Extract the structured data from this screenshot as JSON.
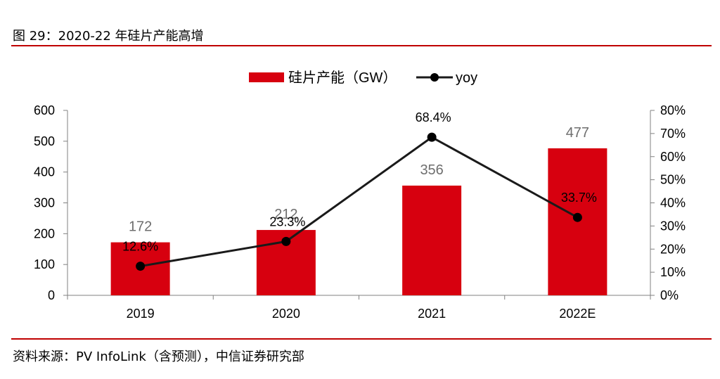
{
  "header": {
    "title": "图 29：2020-22 年硅片产能高增"
  },
  "footer": {
    "source": "资料来源：PV InfoLink（含预测），中信证券研究部"
  },
  "colors": {
    "bar": "#d7000f",
    "line": "#1a1a1a",
    "rule": "#c00000",
    "axis": "#808080"
  },
  "chart_data": {
    "type": "bar",
    "categories": [
      "2019",
      "2020",
      "2021",
      "2022E"
    ],
    "series": [
      {
        "name": "硅片产能（GW）",
        "type": "bar",
        "axis": "left",
        "values": [
          172,
          212,
          356,
          477
        ],
        "labels": [
          "172",
          "212",
          "356",
          "477"
        ]
      },
      {
        "name": "yoy",
        "type": "line",
        "axis": "right",
        "values": [
          12.6,
          23.3,
          68.4,
          33.7
        ],
        "labels": [
          "12.6%",
          "23.3%",
          "68.4%",
          "33.7%"
        ]
      }
    ],
    "y_left": {
      "min": 0,
      "max": 600,
      "ticks": [
        "0",
        "100",
        "200",
        "300",
        "400",
        "500",
        "600"
      ]
    },
    "y_right": {
      "min": 0,
      "max": 80,
      "ticks": [
        "0%",
        "10%",
        "20%",
        "30%",
        "40%",
        "50%",
        "60%",
        "70%",
        "80%"
      ]
    },
    "legend_position": "top-center",
    "grid": false
  }
}
